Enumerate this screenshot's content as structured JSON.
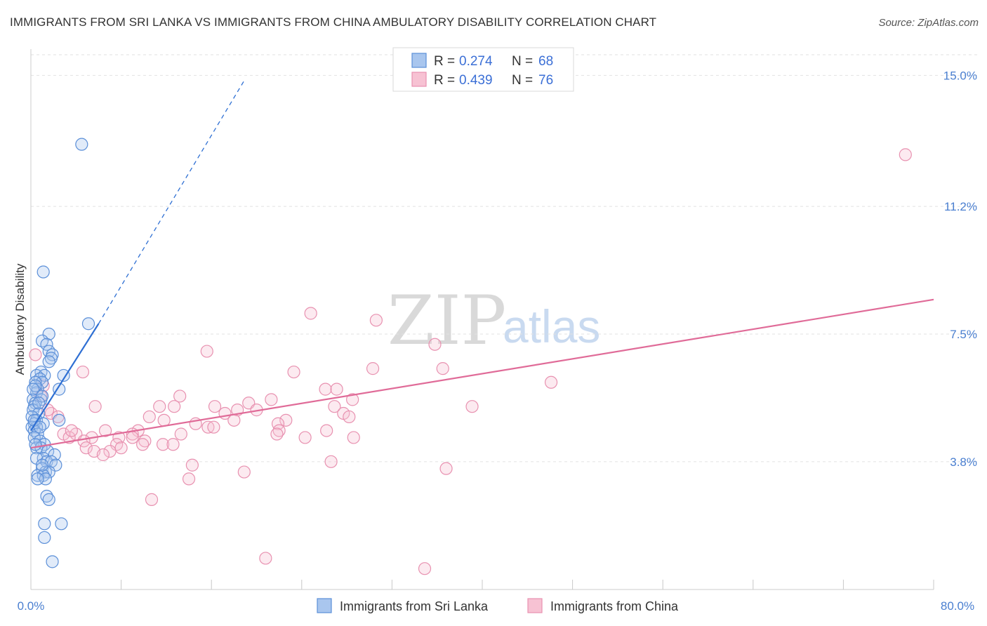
{
  "header": {
    "title": "IMMIGRANTS FROM SRI LANKA VS IMMIGRANTS FROM CHINA AMBULATORY DISABILITY CORRELATION CHART",
    "source": "Source: ZipAtlas.com"
  },
  "watermark": {
    "zip": "ZIP",
    "atlas": "atlas"
  },
  "legend": {
    "rows": [
      {
        "r_label": "R =",
        "r_value": "0.274",
        "n_label": "N =",
        "n_value": "68"
      },
      {
        "r_label": "R =",
        "r_value": "0.439",
        "n_label": "N =",
        "n_value": "76"
      }
    ]
  },
  "colors": {
    "sri_lanka_stroke": "#5b8fd8",
    "sri_lanka_fill": "#a9c6ee",
    "sri_lanka_line": "#2e6fd3",
    "china_stroke": "#e891b0",
    "china_fill": "#f7c2d3",
    "china_line": "#e06b98",
    "tick_label": "#4a7fd0",
    "grid": "#e2e2e2"
  },
  "chart_data": {
    "type": "scatter",
    "title": "IMMIGRANTS FROM SRI LANKA VS IMMIGRANTS FROM CHINA AMBULATORY DISABILITY CORRELATION CHART",
    "xlabel": "",
    "ylabel": "Ambulatory Disability",
    "xlim": [
      0,
      80
    ],
    "ylim": [
      0,
      15.5
    ],
    "x_tick_labels": [
      "0.0%",
      "80.0%"
    ],
    "y_ticks": [
      3.8,
      7.5,
      11.2,
      15.0
    ],
    "y_tick_labels": [
      "3.8%",
      "7.5%",
      "11.2%",
      "15.0%"
    ],
    "grid": true,
    "legend_position": "top-center",
    "series": [
      {
        "name": "Immigrants from Sri Lanka",
        "r": 0.274,
        "n": 68,
        "trend": {
          "solid": [
            [
              0.0,
              4.7
            ],
            [
              6.0,
              7.8
            ]
          ],
          "dashed": [
            [
              6.0,
              7.8
            ],
            [
              19.0,
              14.9
            ]
          ]
        },
        "points": [
          [
            4.5,
            13.0
          ],
          [
            1.1,
            9.3
          ],
          [
            5.1,
            7.8
          ],
          [
            1.6,
            7.5
          ],
          [
            1.0,
            7.3
          ],
          [
            1.4,
            7.2
          ],
          [
            1.6,
            7.0
          ],
          [
            1.9,
            6.9
          ],
          [
            1.8,
            6.8
          ],
          [
            1.6,
            6.7
          ],
          [
            0.9,
            6.4
          ],
          [
            0.5,
            6.3
          ],
          [
            1.2,
            6.3
          ],
          [
            2.9,
            6.3
          ],
          [
            0.8,
            6.2
          ],
          [
            1.0,
            6.1
          ],
          [
            0.4,
            6.1
          ],
          [
            0.6,
            5.9
          ],
          [
            2.5,
            5.9
          ],
          [
            0.5,
            5.8
          ],
          [
            0.2,
            5.6
          ],
          [
            0.9,
            5.6
          ],
          [
            0.4,
            5.5
          ],
          [
            0.3,
            5.4
          ],
          [
            0.2,
            5.3
          ],
          [
            0.7,
            5.2
          ],
          [
            0.1,
            5.1
          ],
          [
            0.5,
            5.0
          ],
          [
            2.5,
            5.0
          ],
          [
            0.3,
            4.9
          ],
          [
            1.1,
            4.9
          ],
          [
            0.5,
            4.8
          ],
          [
            0.1,
            4.8
          ],
          [
            0.3,
            4.7
          ],
          [
            0.6,
            4.6
          ],
          [
            0.3,
            4.5
          ],
          [
            0.8,
            4.4
          ],
          [
            1.2,
            4.3
          ],
          [
            0.5,
            4.2
          ],
          [
            0.9,
            4.2
          ],
          [
            1.5,
            4.1
          ],
          [
            2.1,
            4.0
          ],
          [
            1.1,
            3.9
          ],
          [
            0.5,
            3.9
          ],
          [
            1.4,
            3.8
          ],
          [
            1.8,
            3.8
          ],
          [
            2.2,
            3.7
          ],
          [
            1.0,
            3.6
          ],
          [
            1.3,
            3.5
          ],
          [
            1.6,
            3.5
          ],
          [
            0.6,
            3.4
          ],
          [
            1.1,
            3.4
          ],
          [
            1.3,
            3.3
          ],
          [
            1.4,
            2.8
          ],
          [
            1.6,
            2.7
          ],
          [
            1.2,
            2.0
          ],
          [
            2.7,
            2.0
          ],
          [
            1.2,
            1.6
          ],
          [
            1.9,
            0.9
          ],
          [
            0.4,
            6.0
          ],
          [
            0.2,
            5.9
          ],
          [
            1.0,
            5.7
          ],
          [
            0.7,
            5.5
          ],
          [
            0.3,
            5.0
          ],
          [
            0.8,
            4.8
          ],
          [
            0.4,
            4.3
          ],
          [
            1.0,
            3.7
          ],
          [
            0.6,
            3.3
          ]
        ]
      },
      {
        "name": "Immigrants from China",
        "r": 0.439,
        "n": 76,
        "trend": {
          "solid": [
            [
              0.0,
              4.2
            ],
            [
              80.0,
              8.5
            ]
          ]
        },
        "points": [
          [
            77.5,
            12.7
          ],
          [
            24.8,
            8.1
          ],
          [
            30.6,
            7.9
          ],
          [
            35.8,
            7.2
          ],
          [
            15.6,
            7.0
          ],
          [
            0.4,
            6.9
          ],
          [
            36.5,
            6.5
          ],
          [
            30.3,
            6.5
          ],
          [
            4.6,
            6.4
          ],
          [
            23.3,
            6.4
          ],
          [
            46.1,
            6.1
          ],
          [
            1.1,
            6.0
          ],
          [
            26.1,
            5.9
          ],
          [
            27.1,
            5.9
          ],
          [
            13.2,
            5.7
          ],
          [
            21.3,
            5.6
          ],
          [
            28.5,
            5.6
          ],
          [
            19.3,
            5.5
          ],
          [
            5.7,
            5.4
          ],
          [
            11.4,
            5.4
          ],
          [
            12.7,
            5.4
          ],
          [
            26.9,
            5.4
          ],
          [
            39.1,
            5.4
          ],
          [
            16.3,
            5.4
          ],
          [
            20.0,
            5.3
          ],
          [
            18.3,
            5.3
          ],
          [
            17.2,
            5.2
          ],
          [
            1.8,
            5.2
          ],
          [
            27.7,
            5.2
          ],
          [
            28.2,
            5.1
          ],
          [
            10.5,
            5.1
          ],
          [
            11.8,
            5.0
          ],
          [
            18.0,
            5.0
          ],
          [
            22.6,
            5.0
          ],
          [
            21.9,
            4.9
          ],
          [
            14.6,
            4.9
          ],
          [
            15.7,
            4.8
          ],
          [
            16.2,
            4.8
          ],
          [
            6.6,
            4.7
          ],
          [
            26.2,
            4.7
          ],
          [
            22.0,
            4.7
          ],
          [
            9.5,
            4.7
          ],
          [
            4.0,
            4.6
          ],
          [
            13.3,
            4.6
          ],
          [
            21.8,
            4.6
          ],
          [
            9.0,
            4.6
          ],
          [
            2.9,
            4.6
          ],
          [
            7.8,
            4.5
          ],
          [
            28.6,
            4.5
          ],
          [
            3.4,
            4.5
          ],
          [
            5.4,
            4.5
          ],
          [
            24.3,
            4.5
          ],
          [
            10.1,
            4.4
          ],
          [
            4.7,
            4.4
          ],
          [
            7.6,
            4.3
          ],
          [
            9.9,
            4.3
          ],
          [
            11.7,
            4.3
          ],
          [
            12.6,
            4.3
          ],
          [
            8.0,
            4.2
          ],
          [
            4.9,
            4.2
          ],
          [
            5.6,
            4.1
          ],
          [
            7.0,
            4.1
          ],
          [
            6.4,
            4.0
          ],
          [
            26.6,
            3.8
          ],
          [
            14.3,
            3.7
          ],
          [
            36.8,
            3.6
          ],
          [
            18.9,
            3.5
          ],
          [
            14.0,
            3.3
          ],
          [
            10.7,
            2.7
          ],
          [
            20.8,
            1.0
          ],
          [
            34.9,
            0.7
          ],
          [
            9.0,
            4.5
          ],
          [
            3.6,
            4.7
          ],
          [
            1.5,
            5.3
          ],
          [
            2.4,
            5.1
          ],
          [
            0.9,
            5.7
          ]
        ]
      }
    ]
  },
  "bottom_legend": {
    "items": [
      {
        "label": "Immigrants from Sri Lanka"
      },
      {
        "label": "Immigrants from China"
      }
    ]
  }
}
